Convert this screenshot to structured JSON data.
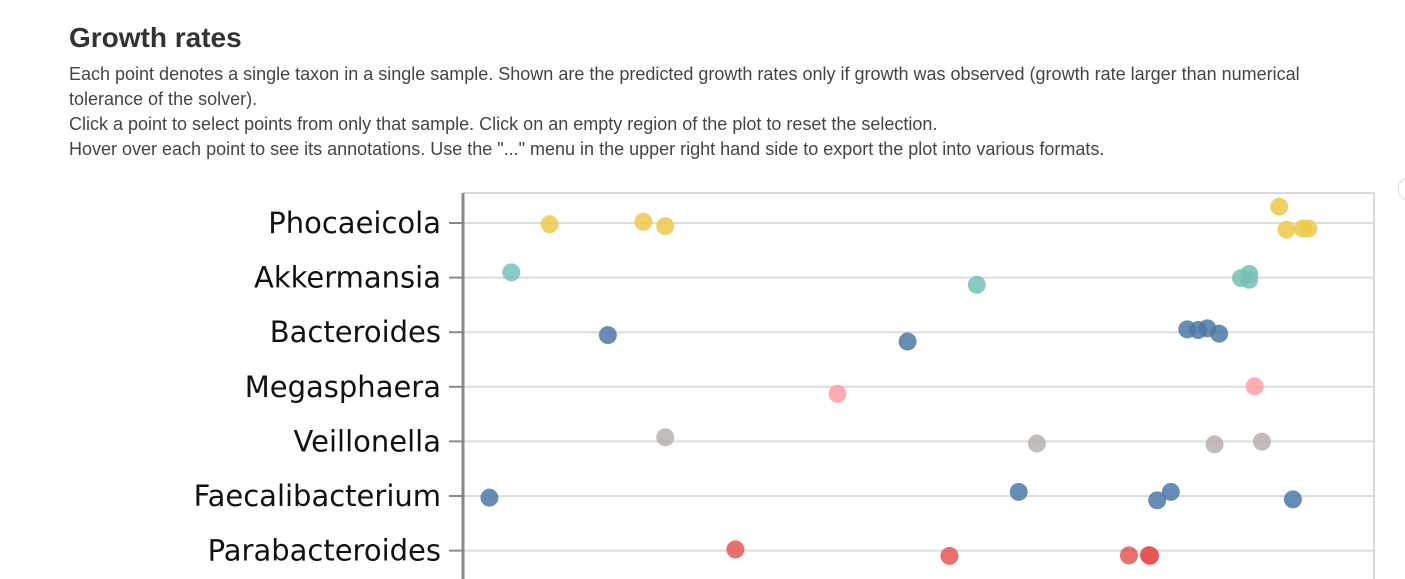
{
  "header": {
    "title": "Growth rates",
    "lines": [
      "Each point denotes a single taxon in a single sample. Shown are the predicted growth rates only if growth was observed (growth rate larger than numerical tolerance of the solver).",
      "Click a point to select points from only that sample. Click on an empty region of the plot to reset the selection.",
      "Hover over each point to see its annotations. Use the \"...\" menu in the upper right hand side to export the plot into various formats."
    ]
  },
  "chart_data": {
    "type": "scatter",
    "grid": true,
    "categories": [
      "Phocaeicola",
      "Akkermansia",
      "Bacteroides",
      "Megasphaera",
      "Veillonella",
      "Faecalibacterium",
      "Parabacteroides"
    ],
    "xlim": [
      0,
      1
    ],
    "series": [
      {
        "category": "Phocaeicola",
        "color": "#ecc94b",
        "x": [
          0.095,
          0.198,
          0.222,
          0.896,
          0.904,
          0.922,
          0.928
        ],
        "jitter": [
          0.05,
          -0.05,
          0.13,
          -0.68,
          0.28,
          0.23,
          0.23
        ]
      },
      {
        "category": "Akkermansia",
        "color": "#76c1b6",
        "x": [
          0.053,
          0.564,
          0.854,
          0.863,
          0.863
        ],
        "jitter": [
          -0.22,
          0.3,
          0.02,
          0.09,
          -0.15
        ]
      },
      {
        "category": "Bacteroides",
        "color": "#4e79a7",
        "x": [
          0.159,
          0.488,
          0.795,
          0.807,
          0.817,
          0.83
        ],
        "jitter": [
          0.12,
          0.39,
          -0.12,
          -0.09,
          -0.16,
          0.06
        ]
      },
      {
        "category": "Megasphaera",
        "color": "#ff9da7",
        "x": [
          0.411,
          0.869
        ],
        "jitter": [
          0.29,
          -0.02
        ]
      },
      {
        "category": "Veillonella",
        "color": "#bab0ac",
        "x": [
          0.222,
          0.63,
          0.825,
          0.877
        ],
        "jitter": [
          -0.17,
          0.09,
          0.12,
          0.01
        ]
      },
      {
        "category": "Faecalibacterium",
        "color": "#4e79a7",
        "x": [
          0.029,
          0.61,
          0.762,
          0.777,
          0.911
        ],
        "jitter": [
          0.07,
          -0.17,
          0.18,
          -0.17,
          0.14
        ]
      },
      {
        "category": "Parabacteroides",
        "color": "#e45756",
        "x": [
          0.299,
          0.534,
          0.731,
          0.753,
          0.754,
          0.754
        ],
        "jitter": [
          -0.05,
          0.22,
          0.2,
          0.19,
          0.2,
          0.22
        ]
      }
    ]
  }
}
